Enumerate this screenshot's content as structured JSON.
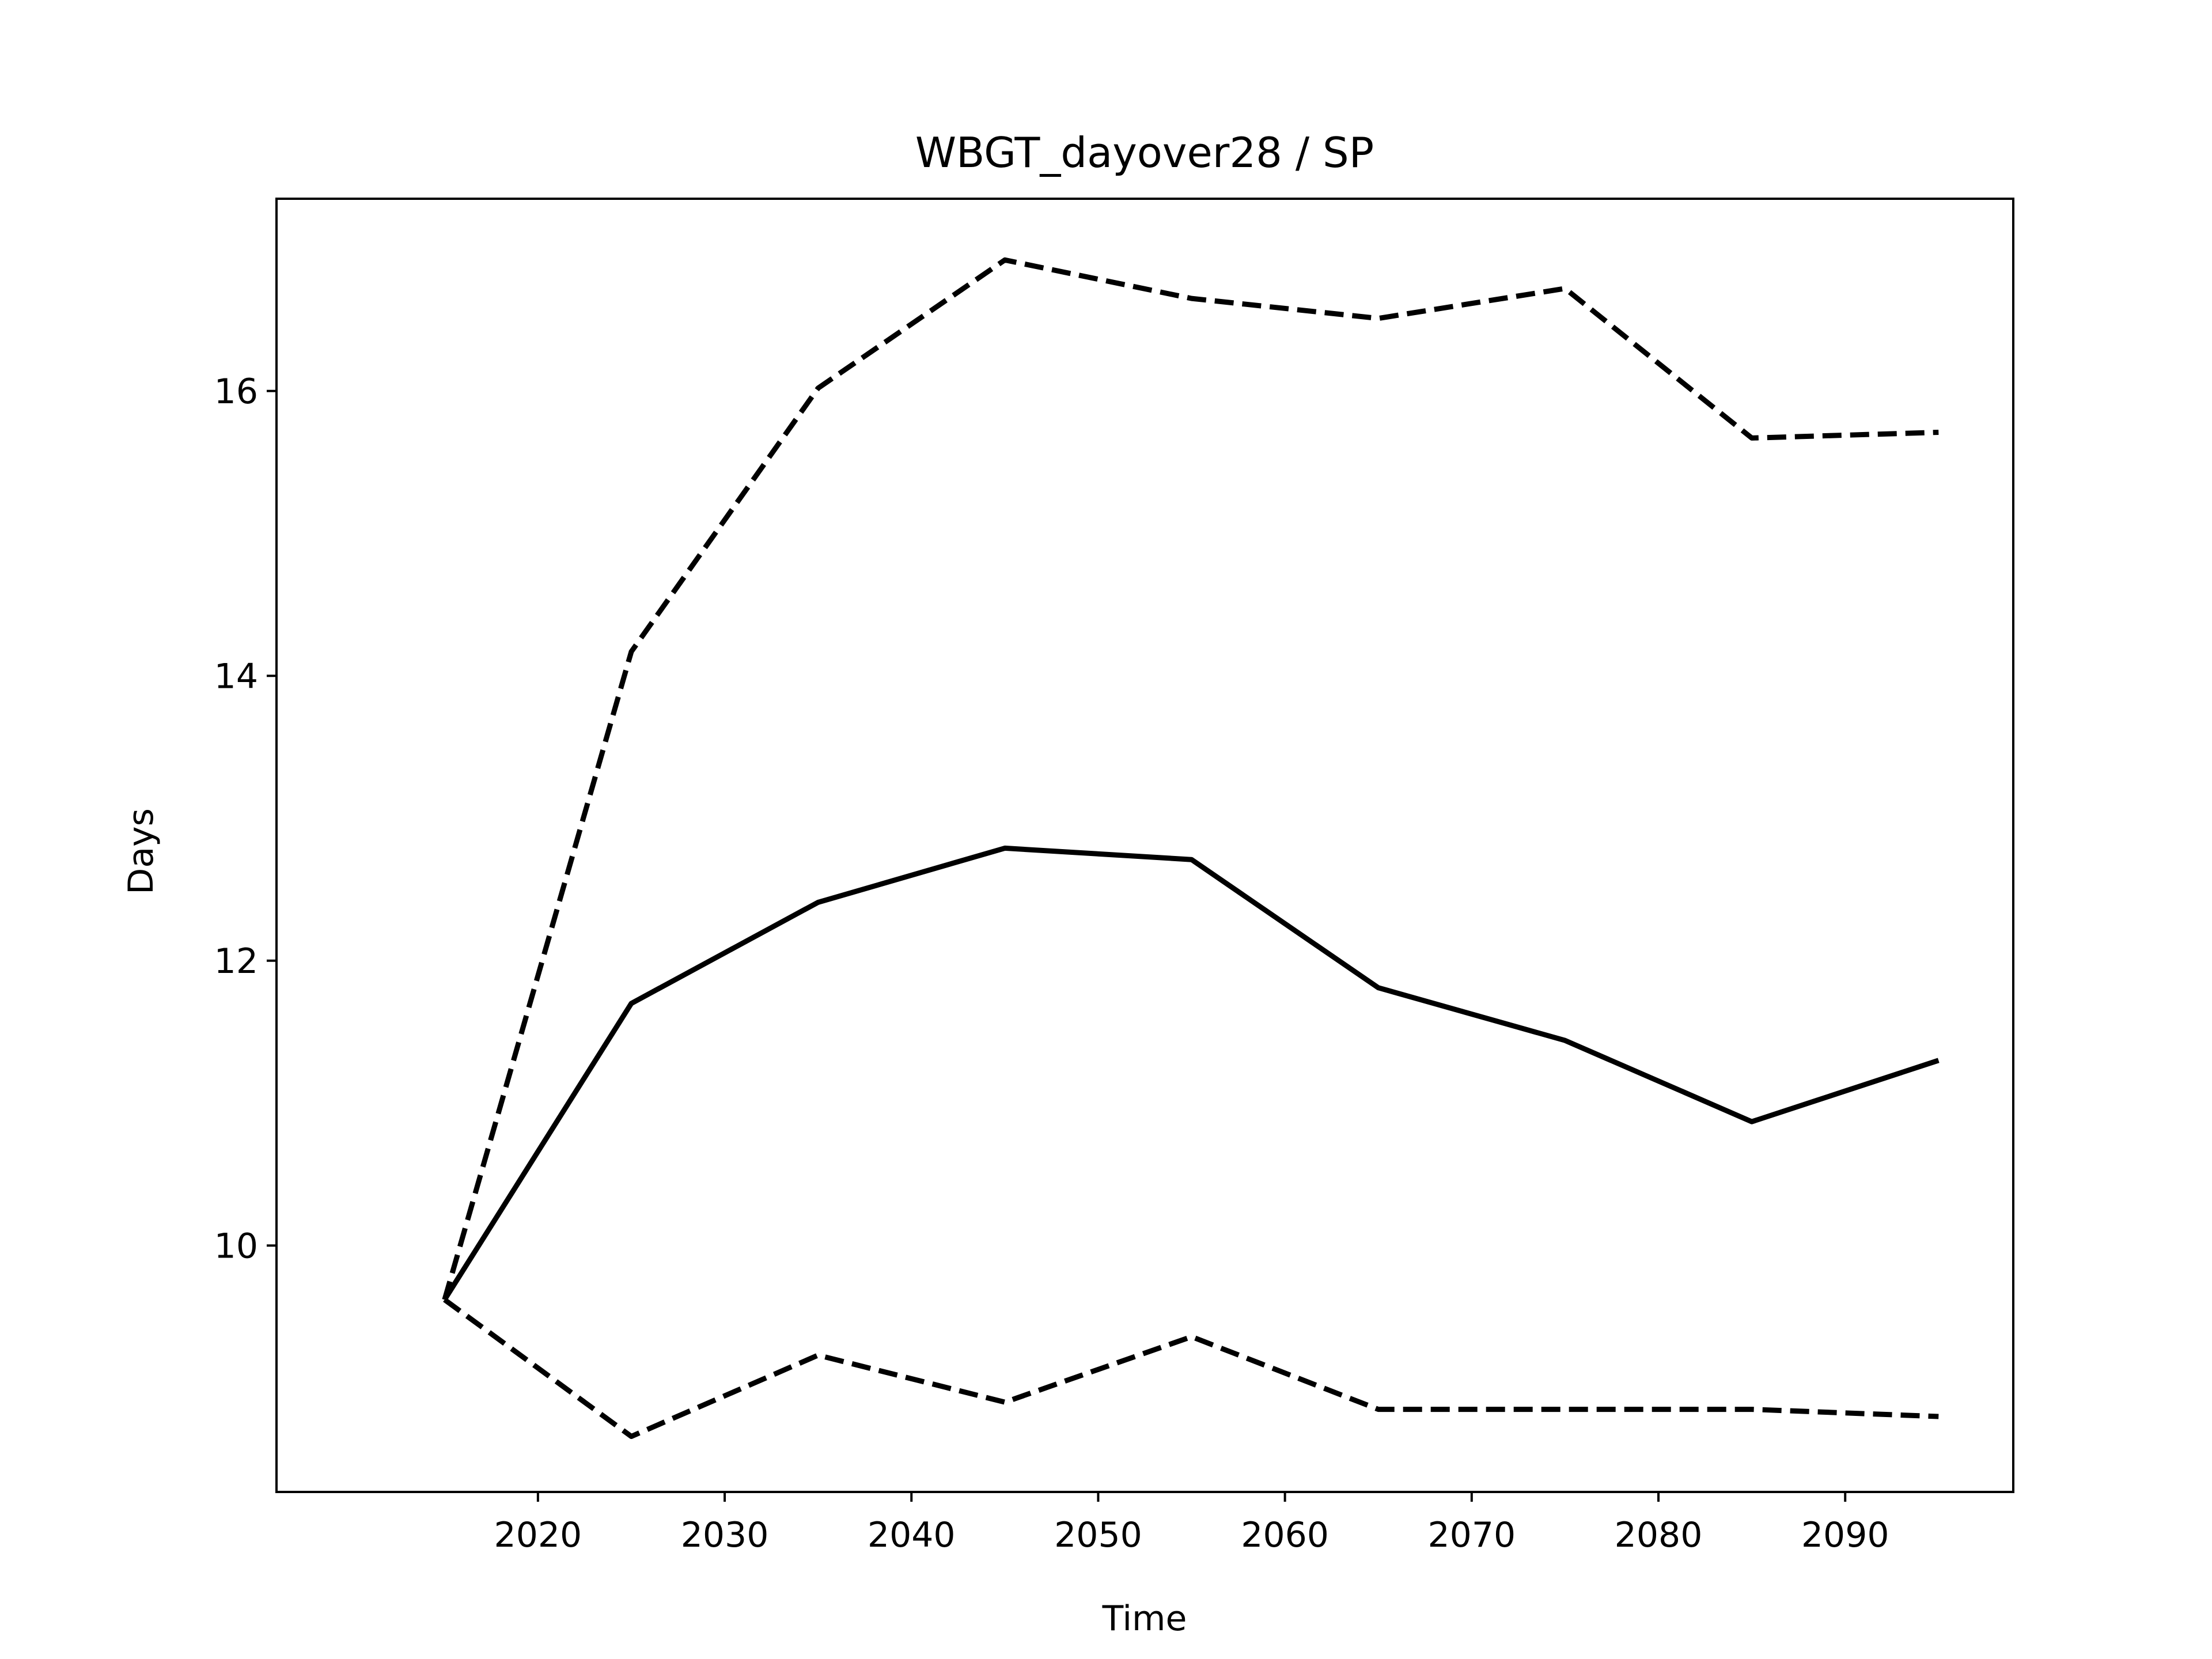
{
  "chart_data": {
    "type": "line",
    "title": "WBGT_dayover28 / SP",
    "xlabel": "Time",
    "ylabel": "Days",
    "x": [
      2015,
      2025,
      2035,
      2045,
      2055,
      2065,
      2075,
      2085,
      2095
    ],
    "series": [
      {
        "line_style": "solid",
        "values": [
          9.62,
          11.7,
          12.41,
          12.79,
          12.71,
          11.81,
          11.44,
          10.87,
          11.3
        ]
      },
      {
        "line_style": "dashed",
        "values": [
          9.62,
          14.17,
          16.02,
          16.92,
          16.65,
          16.51,
          16.72,
          15.67,
          15.71
        ]
      },
      {
        "line_style": "dashed",
        "values": [
          9.62,
          8.66,
          9.23,
          8.9,
          9.36,
          8.85,
          8.85,
          8.85,
          8.8
        ]
      }
    ],
    "xlim": [
      2006,
      2099
    ],
    "ylim": [
      8.27,
      17.35
    ],
    "xticks": [
      "2020",
      "2030",
      "2040",
      "2050",
      "2060",
      "2070",
      "2080",
      "2090"
    ],
    "yticks": [
      "10",
      "12",
      "14",
      "16"
    ],
    "line_color": "#000000",
    "grid": false,
    "legend": "none"
  }
}
